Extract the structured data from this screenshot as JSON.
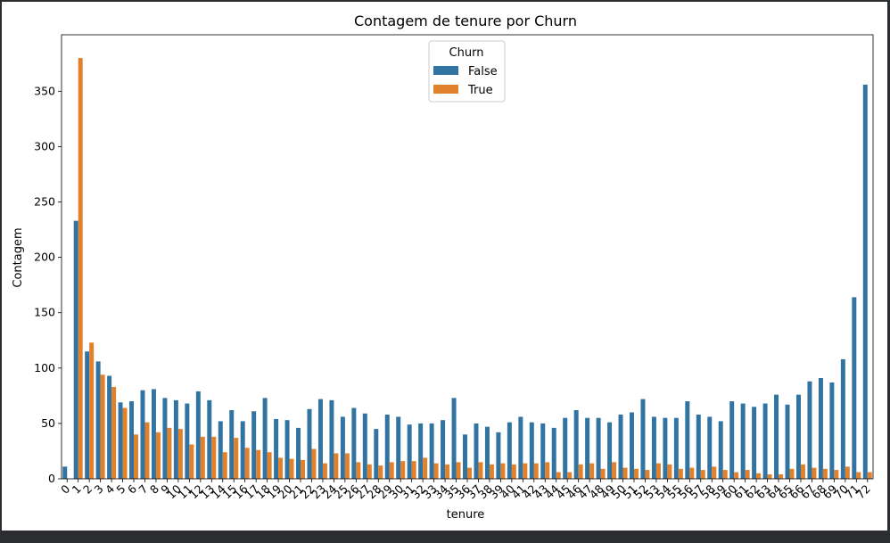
{
  "colors": {
    "false": "#3274a1",
    "true": "#e1812c",
    "background": "#ffffff",
    "frame": "#2b2d30"
  },
  "chart_data": {
    "type": "bar",
    "title": "Contagem de tenure por Churn",
    "xlabel": "tenure",
    "ylabel": "Contagem",
    "ylim": [
      0,
      401
    ],
    "yticks": [
      0,
      50,
      100,
      150,
      200,
      250,
      300,
      350
    ],
    "grid": false,
    "legend": {
      "title": "Churn",
      "position": "top-center"
    },
    "categories": [
      "0",
      "1",
      "2",
      "3",
      "4",
      "5",
      "6",
      "7",
      "8",
      "9",
      "10",
      "11",
      "12",
      "13",
      "14",
      "15",
      "16",
      "17",
      "18",
      "19",
      "20",
      "21",
      "22",
      "23",
      "24",
      "25",
      "26",
      "27",
      "28",
      "29",
      "30",
      "31",
      "32",
      "33",
      "34",
      "35",
      "36",
      "37",
      "38",
      "39",
      "40",
      "41",
      "42",
      "43",
      "44",
      "45",
      "46",
      "47",
      "48",
      "49",
      "50",
      "51",
      "52",
      "53",
      "54",
      "55",
      "56",
      "57",
      "58",
      "59",
      "60",
      "61",
      "62",
      "63",
      "64",
      "65",
      "66",
      "67",
      "68",
      "69",
      "70",
      "71",
      "72"
    ],
    "series": [
      {
        "name": "False",
        "color": "#3274a1",
        "values": [
          11,
          233,
          115,
          106,
          93,
          69,
          70,
          80,
          81,
          73,
          71,
          68,
          79,
          71,
          52,
          62,
          52,
          61,
          73,
          54,
          53,
          46,
          63,
          72,
          71,
          56,
          64,
          59,
          45,
          58,
          56,
          49,
          50,
          50,
          53,
          73,
          40,
          50,
          47,
          42,
          51,
          56,
          51,
          50,
          46,
          55,
          62,
          55,
          55,
          51,
          58,
          60,
          72,
          56,
          55,
          55,
          70,
          58,
          56,
          52,
          70,
          68,
          65,
          68,
          76,
          67,
          76,
          88,
          91,
          87,
          108,
          164,
          356
        ]
      },
      {
        "name": "True",
        "color": "#e1812c",
        "values": [
          0,
          380,
          123,
          94,
          83,
          64,
          40,
          51,
          42,
          46,
          45,
          31,
          38,
          38,
          24,
          37,
          28,
          26,
          24,
          19,
          18,
          17,
          27,
          14,
          23,
          23,
          15,
          13,
          12,
          15,
          16,
          16,
          19,
          14,
          13,
          15,
          10,
          15,
          13,
          14,
          13,
          14,
          14,
          15,
          6,
          6,
          13,
          14,
          9,
          15,
          10,
          9,
          8,
          14,
          13,
          9,
          10,
          8,
          11,
          8,
          6,
          8,
          5,
          4,
          4,
          9,
          13,
          10,
          9,
          8,
          11,
          6,
          6
        ]
      }
    ]
  }
}
